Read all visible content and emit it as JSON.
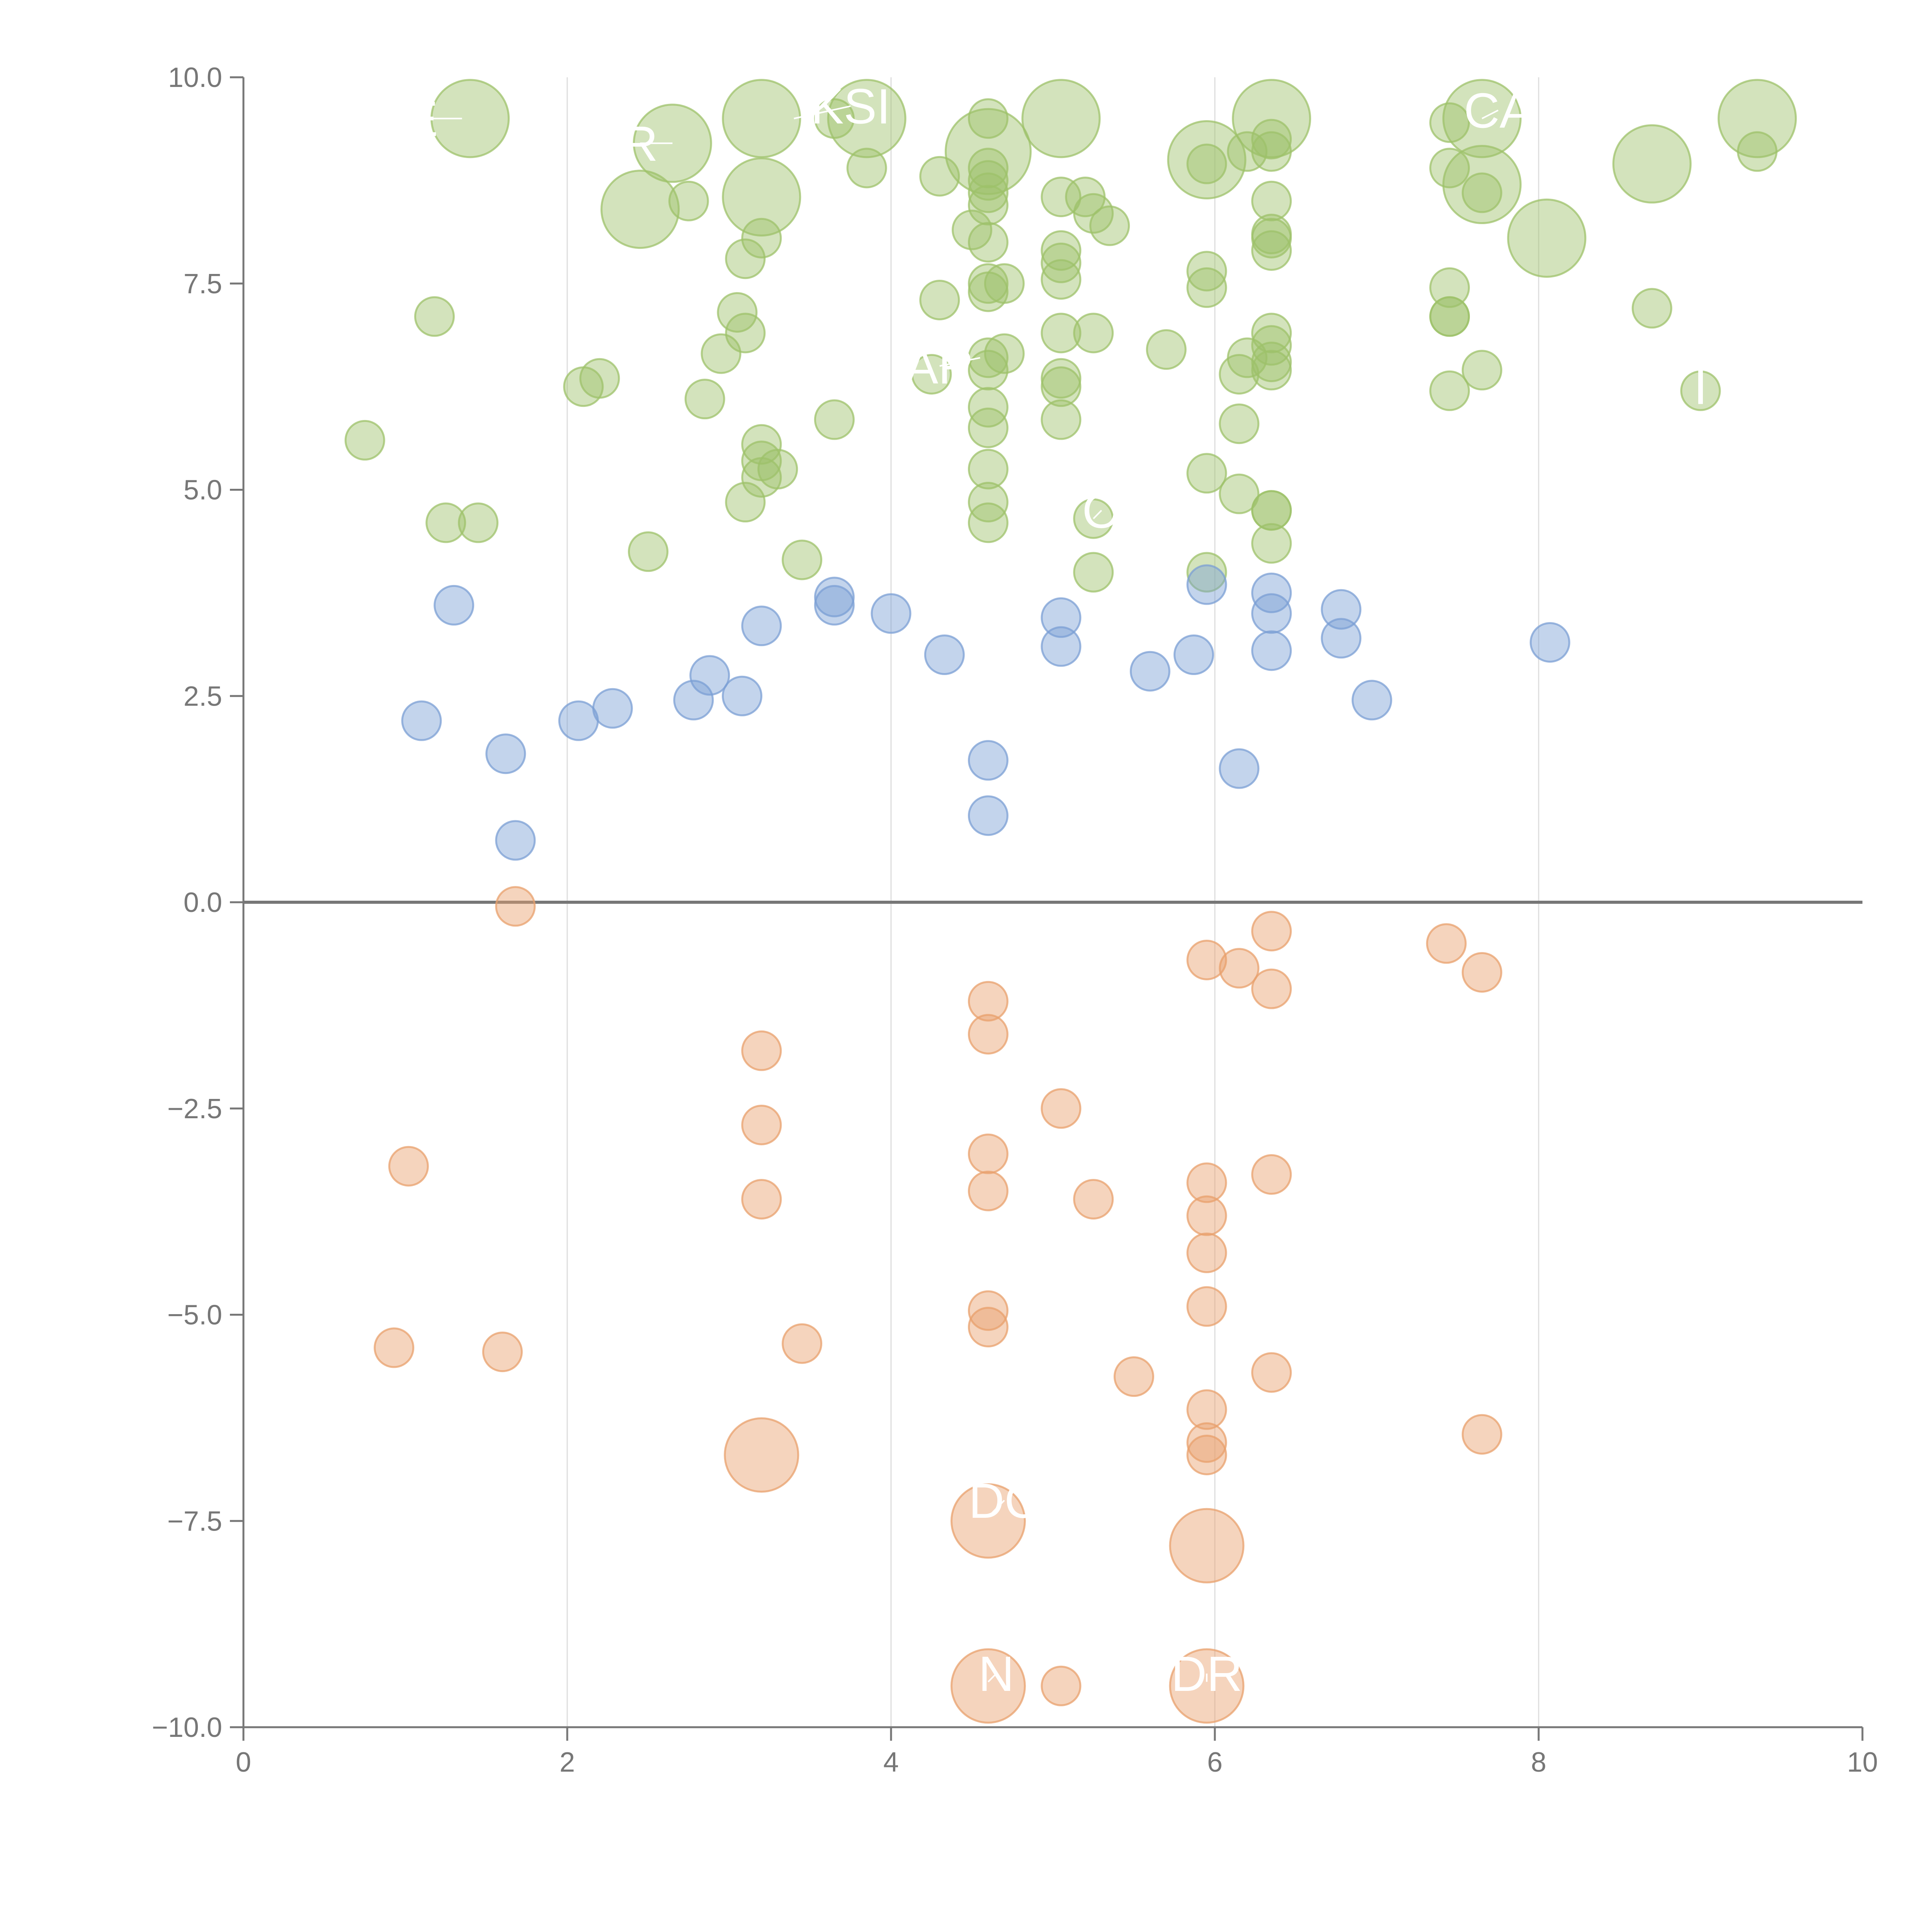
{
  "chart_data": {
    "type": "scatter",
    "title": "",
    "xlabel": "",
    "ylabel": "",
    "xlim": [
      0,
      10
    ],
    "ylim": [
      -10,
      10
    ],
    "x_ticks": [
      "0",
      "2",
      "4",
      "6",
      "8",
      "10"
    ],
    "y_ticks": [
      "10.0",
      "7.5",
      "5.0",
      "2.5",
      "0.0",
      "−2.5",
      "−5.0",
      "−7.5",
      "−10.0"
    ],
    "x_tick_values": [
      0,
      2,
      4,
      6,
      8,
      10
    ],
    "y_tick_values": [
      10,
      7.5,
      5,
      2.5,
      0,
      -2.5,
      -5,
      -7.5,
      -10
    ],
    "grid": {
      "x": true,
      "y": false
    },
    "zero_line": true,
    "colors": {
      "green": "#9dc26a",
      "blue": "#7b9fd4",
      "orange": "#e8a06c"
    },
    "series": [
      {
        "color": "#9dc26a",
        "points": [
          {
            "x": 1.4,
            "y": 9.5,
            "s": 2
          },
          {
            "x": 2.65,
            "y": 9.2,
            "s": 2
          },
          {
            "x": 3.2,
            "y": 9.5,
            "s": 2
          },
          {
            "x": 3.2,
            "y": 8.55,
            "s": 2
          },
          {
            "x": 3.85,
            "y": 9.5,
            "s": 2
          },
          {
            "x": 4.6,
            "y": 9.1,
            "s": 2.2
          },
          {
            "x": 5.05,
            "y": 9.5,
            "s": 2
          },
          {
            "x": 5.95,
            "y": 9.0,
            "s": 2
          },
          {
            "x": 6.35,
            "y": 9.5,
            "s": 2
          },
          {
            "x": 7.65,
            "y": 9.5,
            "s": 2
          },
          {
            "x": 7.65,
            "y": 8.7,
            "s": 2
          },
          {
            "x": 8.05,
            "y": 8.05,
            "s": 2
          },
          {
            "x": 8.7,
            "y": 8.95,
            "s": 2
          },
          {
            "x": 9.35,
            "y": 9.5,
            "s": 2
          },
          {
            "x": 2.45,
            "y": 8.4,
            "s": 2
          },
          {
            "x": 2.75,
            "y": 8.5,
            "s": 1
          },
          {
            "x": 3.2,
            "y": 8.05,
            "s": 1
          },
          {
            "x": 3.1,
            "y": 7.8,
            "s": 1
          },
          {
            "x": 3.65,
            "y": 9.5,
            "s": 1
          },
          {
            "x": 3.85,
            "y": 8.9,
            "s": 1
          },
          {
            "x": 4.3,
            "y": 8.8,
            "s": 1
          },
          {
            "x": 4.6,
            "y": 9.5,
            "s": 1
          },
          {
            "x": 4.6,
            "y": 8.9,
            "s": 1
          },
          {
            "x": 4.6,
            "y": 8.75,
            "s": 1
          },
          {
            "x": 4.6,
            "y": 8.6,
            "s": 1
          },
          {
            "x": 4.6,
            "y": 8.45,
            "s": 1
          },
          {
            "x": 4.6,
            "y": 8.0,
            "s": 1
          },
          {
            "x": 4.5,
            "y": 8.15,
            "s": 1
          },
          {
            "x": 5.05,
            "y": 8.55,
            "s": 1
          },
          {
            "x": 5.2,
            "y": 8.55,
            "s": 1
          },
          {
            "x": 5.25,
            "y": 8.35,
            "s": 1
          },
          {
            "x": 5.35,
            "y": 8.2,
            "s": 1
          },
          {
            "x": 5.05,
            "y": 7.9,
            "s": 1
          },
          {
            "x": 5.05,
            "y": 7.75,
            "s": 1
          },
          {
            "x": 5.05,
            "y": 7.55,
            "s": 1
          },
          {
            "x": 5.95,
            "y": 8.95,
            "s": 1
          },
          {
            "x": 6.2,
            "y": 9.1,
            "s": 1
          },
          {
            "x": 6.35,
            "y": 9.25,
            "s": 1
          },
          {
            "x": 6.35,
            "y": 9.1,
            "s": 1
          },
          {
            "x": 6.35,
            "y": 8.5,
            "s": 1
          },
          {
            "x": 6.35,
            "y": 8.1,
            "s": 1
          },
          {
            "x": 6.35,
            "y": 8.05,
            "s": 1
          },
          {
            "x": 6.35,
            "y": 7.9,
            "s": 1
          },
          {
            "x": 7.45,
            "y": 9.45,
            "s": 1
          },
          {
            "x": 7.45,
            "y": 8.9,
            "s": 1
          },
          {
            "x": 7.65,
            "y": 8.6,
            "s": 1
          },
          {
            "x": 9.35,
            "y": 9.1,
            "s": 1
          },
          {
            "x": 1.18,
            "y": 7.1,
            "s": 1
          },
          {
            "x": 3.05,
            "y": 7.15,
            "s": 1
          },
          {
            "x": 3.1,
            "y": 6.9,
            "s": 1
          },
          {
            "x": 2.95,
            "y": 6.65,
            "s": 1
          },
          {
            "x": 2.2,
            "y": 6.35,
            "s": 1
          },
          {
            "x": 2.1,
            "y": 6.25,
            "s": 1
          },
          {
            "x": 2.85,
            "y": 6.1,
            "s": 1
          },
          {
            "x": 3.65,
            "y": 5.85,
            "s": 1
          },
          {
            "x": 4.3,
            "y": 7.3,
            "s": 1
          },
          {
            "x": 4.6,
            "y": 7.5,
            "s": 1
          },
          {
            "x": 4.6,
            "y": 7.4,
            "s": 1
          },
          {
            "x": 4.7,
            "y": 7.5,
            "s": 1
          },
          {
            "x": 4.25,
            "y": 6.4,
            "s": 1
          },
          {
            "x": 4.6,
            "y": 6.6,
            "s": 1
          },
          {
            "x": 4.6,
            "y": 6.45,
            "s": 1
          },
          {
            "x": 4.7,
            "y": 6.65,
            "s": 1
          },
          {
            "x": 4.6,
            "y": 6.0,
            "s": 1
          },
          {
            "x": 4.6,
            "y": 5.75,
            "s": 1
          },
          {
            "x": 5.05,
            "y": 6.9,
            "s": 1
          },
          {
            "x": 5.05,
            "y": 6.35,
            "s": 1
          },
          {
            "x": 5.05,
            "y": 6.25,
            "s": 1
          },
          {
            "x": 5.25,
            "y": 6.9,
            "s": 1
          },
          {
            "x": 5.05,
            "y": 5.85,
            "s": 1
          },
          {
            "x": 5.7,
            "y": 6.7,
            "s": 1
          },
          {
            "x": 5.95,
            "y": 7.65,
            "s": 1
          },
          {
            "x": 5.95,
            "y": 7.45,
            "s": 1
          },
          {
            "x": 6.15,
            "y": 6.4,
            "s": 1
          },
          {
            "x": 6.2,
            "y": 6.6,
            "s": 1
          },
          {
            "x": 6.15,
            "y": 5.8,
            "s": 1
          },
          {
            "x": 6.35,
            "y": 6.9,
            "s": 1
          },
          {
            "x": 6.35,
            "y": 6.75,
            "s": 1
          },
          {
            "x": 6.35,
            "y": 6.55,
            "s": 1
          },
          {
            "x": 6.35,
            "y": 6.45,
            "s": 1
          },
          {
            "x": 7.45,
            "y": 7.45,
            "s": 1
          },
          {
            "x": 7.45,
            "y": 7.1,
            "s": 1
          },
          {
            "x": 7.45,
            "y": 7.1,
            "s": 1
          },
          {
            "x": 7.65,
            "y": 6.45,
            "s": 1
          },
          {
            "x": 7.45,
            "y": 6.2,
            "s": 1
          },
          {
            "x": 8.7,
            "y": 7.2,
            "s": 1
          },
          {
            "x": 9.0,
            "y": 6.2,
            "s": 1
          },
          {
            "x": 0.75,
            "y": 5.6,
            "s": 1
          },
          {
            "x": 1.25,
            "y": 4.6,
            "s": 1
          },
          {
            "x": 1.45,
            "y": 4.6,
            "s": 1
          },
          {
            "x": 2.5,
            "y": 4.25,
            "s": 1
          },
          {
            "x": 3.2,
            "y": 5.55,
            "s": 1
          },
          {
            "x": 3.2,
            "y": 5.35,
            "s": 1
          },
          {
            "x": 3.3,
            "y": 5.25,
            "s": 1
          },
          {
            "x": 3.2,
            "y": 5.15,
            "s": 1
          },
          {
            "x": 3.1,
            "y": 4.85,
            "s": 1
          },
          {
            "x": 3.45,
            "y": 4.15,
            "s": 1
          },
          {
            "x": 4.6,
            "y": 5.25,
            "s": 1
          },
          {
            "x": 4.6,
            "y": 4.85,
            "s": 1
          },
          {
            "x": 4.6,
            "y": 4.6,
            "s": 1
          },
          {
            "x": 5.25,
            "y": 4.65,
            "s": 1
          },
          {
            "x": 5.25,
            "y": 4.0,
            "s": 1
          },
          {
            "x": 5.95,
            "y": 5.2,
            "s": 1
          },
          {
            "x": 5.95,
            "y": 4.0,
            "s": 1
          },
          {
            "x": 6.15,
            "y": 4.95,
            "s": 1
          },
          {
            "x": 6.35,
            "y": 4.75,
            "s": 1
          },
          {
            "x": 6.35,
            "y": 4.75,
            "s": 1
          },
          {
            "x": 6.35,
            "y": 4.35,
            "s": 1
          }
        ]
      },
      {
        "color": "#7b9fd4",
        "points": [
          {
            "x": 1.3,
            "y": 3.6,
            "s": 1
          },
          {
            "x": 1.1,
            "y": 2.2,
            "s": 1
          },
          {
            "x": 1.62,
            "y": 1.8,
            "s": 1
          },
          {
            "x": 1.68,
            "y": 0.75,
            "s": 1
          },
          {
            "x": 2.07,
            "y": 2.2,
            "s": 1
          },
          {
            "x": 2.28,
            "y": 2.35,
            "s": 1
          },
          {
            "x": 2.78,
            "y": 2.45,
            "s": 1
          },
          {
            "x": 2.88,
            "y": 2.75,
            "s": 1
          },
          {
            "x": 3.08,
            "y": 2.5,
            "s": 1
          },
          {
            "x": 3.2,
            "y": 3.35,
            "s": 1
          },
          {
            "x": 3.65,
            "y": 3.7,
            "s": 1
          },
          {
            "x": 3.65,
            "y": 3.6,
            "s": 1
          },
          {
            "x": 4.0,
            "y": 3.5,
            "s": 1
          },
          {
            "x": 4.33,
            "y": 3.0,
            "s": 1
          },
          {
            "x": 4.6,
            "y": 1.72,
            "s": 1
          },
          {
            "x": 4.6,
            "y": 1.05,
            "s": 1
          },
          {
            "x": 5.05,
            "y": 3.45,
            "s": 1
          },
          {
            "x": 5.05,
            "y": 3.1,
            "s": 1
          },
          {
            "x": 5.6,
            "y": 2.8,
            "s": 1
          },
          {
            "x": 5.87,
            "y": 3.0,
            "s": 1
          },
          {
            "x": 5.95,
            "y": 3.85,
            "s": 1
          },
          {
            "x": 6.15,
            "y": 1.62,
            "s": 1
          },
          {
            "x": 6.35,
            "y": 3.75,
            "s": 1
          },
          {
            "x": 6.35,
            "y": 3.5,
            "s": 1
          },
          {
            "x": 6.35,
            "y": 3.05,
            "s": 1
          },
          {
            "x": 6.78,
            "y": 3.55,
            "s": 1
          },
          {
            "x": 6.78,
            "y": 3.2,
            "s": 1
          },
          {
            "x": 6.97,
            "y": 2.45,
            "s": 1
          },
          {
            "x": 8.07,
            "y": 3.15,
            "s": 1
          }
        ]
      },
      {
        "color": "#e8a06c",
        "points": [
          {
            "x": 1.68,
            "y": -0.05,
            "s": 1
          },
          {
            "x": 1.02,
            "y": -3.2,
            "s": 1
          },
          {
            "x": 0.93,
            "y": -5.4,
            "s": 1
          },
          {
            "x": 1.6,
            "y": -5.45,
            "s": 1
          },
          {
            "x": 3.2,
            "y": -1.8,
            "s": 1
          },
          {
            "x": 3.2,
            "y": -2.7,
            "s": 1
          },
          {
            "x": 3.2,
            "y": -3.6,
            "s": 1
          },
          {
            "x": 3.45,
            "y": -5.35,
            "s": 1
          },
          {
            "x": 3.2,
            "y": -6.7,
            "s": 1.9
          },
          {
            "x": 4.6,
            "y": -1.2,
            "s": 1
          },
          {
            "x": 4.6,
            "y": -1.6,
            "s": 1
          },
          {
            "x": 4.6,
            "y": -3.05,
            "s": 1
          },
          {
            "x": 4.6,
            "y": -3.5,
            "s": 1
          },
          {
            "x": 4.6,
            "y": -4.95,
            "s": 1
          },
          {
            "x": 4.6,
            "y": -5.15,
            "s": 1
          },
          {
            "x": 4.6,
            "y": -7.5,
            "s": 1.9
          },
          {
            "x": 4.6,
            "y": -9.5,
            "s": 1.9
          },
          {
            "x": 5.05,
            "y": -2.5,
            "s": 1
          },
          {
            "x": 5.05,
            "y": -9.5,
            "s": 1
          },
          {
            "x": 5.25,
            "y": -3.6,
            "s": 1
          },
          {
            "x": 5.5,
            "y": -5.75,
            "s": 1
          },
          {
            "x": 5.95,
            "y": -0.7,
            "s": 1
          },
          {
            "x": 5.95,
            "y": -3.4,
            "s": 1
          },
          {
            "x": 5.95,
            "y": -3.8,
            "s": 1
          },
          {
            "x": 5.95,
            "y": -4.25,
            "s": 1
          },
          {
            "x": 5.95,
            "y": -4.9,
            "s": 1
          },
          {
            "x": 5.95,
            "y": -6.15,
            "s": 1
          },
          {
            "x": 5.95,
            "y": -6.55,
            "s": 1
          },
          {
            "x": 5.95,
            "y": -6.7,
            "s": 1
          },
          {
            "x": 5.95,
            "y": -7.8,
            "s": 1.9
          },
          {
            "x": 5.95,
            "y": -9.5,
            "s": 1.9
          },
          {
            "x": 6.15,
            "y": -0.8,
            "s": 1
          },
          {
            "x": 6.35,
            "y": -0.35,
            "s": 1
          },
          {
            "x": 6.35,
            "y": -1.05,
            "s": 1
          },
          {
            "x": 6.35,
            "y": -3.3,
            "s": 1
          },
          {
            "x": 6.35,
            "y": -5.7,
            "s": 1
          },
          {
            "x": 7.43,
            "y": -0.5,
            "s": 1
          },
          {
            "x": 7.65,
            "y": -0.85,
            "s": 1
          },
          {
            "x": 7.65,
            "y": -6.45,
            "s": 1
          }
        ]
      }
    ],
    "labels": [
      {
        "text": "E",
        "x": 1.1,
        "y": 9.5,
        "to_x": 1.35,
        "to_y": 9.5
      },
      {
        "text": "R",
        "x": 2.45,
        "y": 9.2,
        "to_x": 2.65,
        "to_y": 9.2
      },
      {
        "text": "KSI",
        "x": 3.75,
        "y": 9.65,
        "to_x": 3.4,
        "to_y": 9.5
      },
      {
        "text": "CA",
        "x": 7.75,
        "y": 9.6,
        "to_x": 7.65,
        "to_y": 9.5
      },
      {
        "text": "AR",
        "x": 4.3,
        "y": 6.5,
        "to_x": 4.55,
        "to_y": 6.6
      },
      {
        "text": "O",
        "x": 5.3,
        "y": 4.75,
        "to_x": 5.25,
        "to_y": 4.65
      },
      {
        "text": "I",
        "x": 9.0,
        "y": 6.25,
        "to_x": 9.0,
        "to_y": 6.2
      },
      {
        "text": "DC",
        "x": 4.7,
        "y": -7.25,
        "to_x": 4.6,
        "to_y": -7.45
      },
      {
        "text": "N",
        "x": 4.65,
        "y": -9.35,
        "to_x": 4.6,
        "to_y": -9.45
      },
      {
        "text": "DR",
        "x": 5.95,
        "y": -9.35,
        "to_x": 5.95,
        "to_y": -9.45
      }
    ]
  }
}
